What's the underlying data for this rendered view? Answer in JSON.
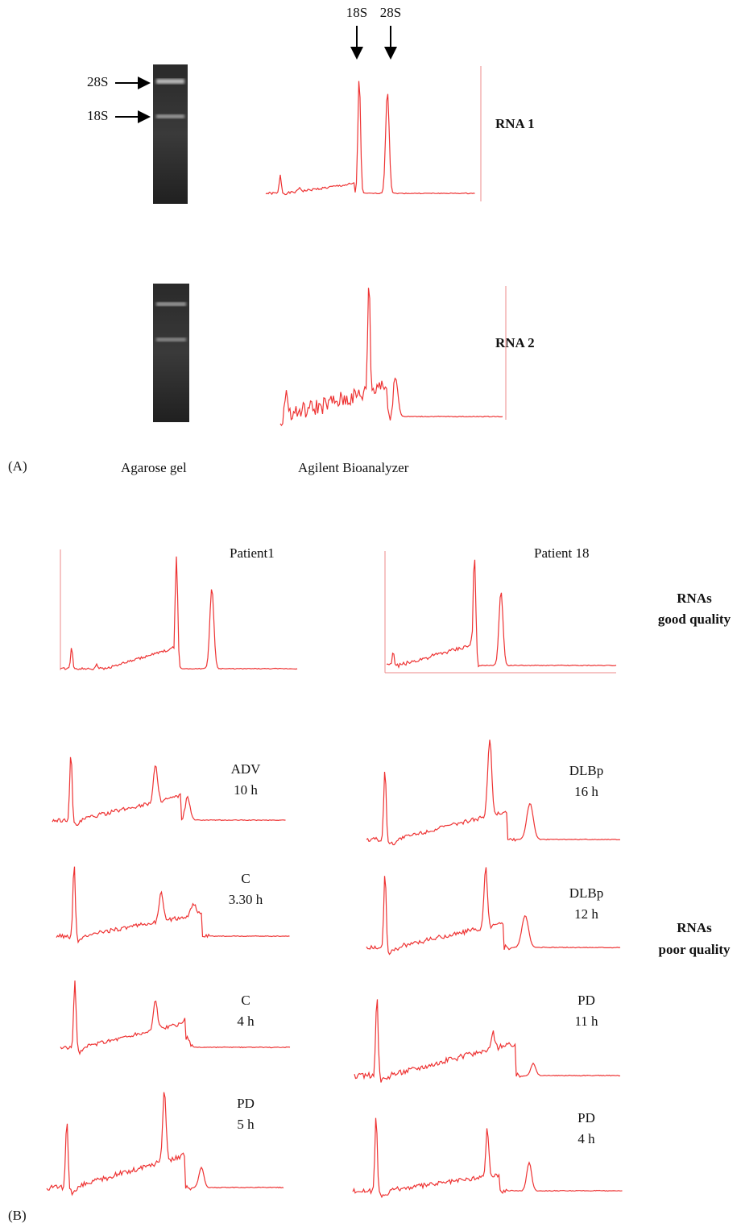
{
  "panel_a": {
    "label": "(A)",
    "gel_caption": "Agarose gel",
    "trace_caption": "Agilent Bioanalyzer",
    "gel_markers": [
      "28S",
      "18S"
    ],
    "peak_markers": [
      "18S",
      "28S"
    ],
    "samples": [
      "RNA 1",
      "RNA 2"
    ]
  },
  "panel_b": {
    "label": "(B)",
    "good": {
      "title": [
        "RNAs",
        "good quality"
      ],
      "patients": [
        "Patient1",
        "Patient 18"
      ]
    },
    "poor": {
      "title": [
        "RNAs",
        "poor quality"
      ],
      "samples": [
        {
          "name": "ADV",
          "time": "10 h"
        },
        {
          "name": "DLBp",
          "time": "16 h"
        },
        {
          "name": "C",
          "time": "3.30 h"
        },
        {
          "name": "DLBp",
          "time": "12 h"
        },
        {
          "name": "C",
          "time": "4 h"
        },
        {
          "name": "PD",
          "time": "11 h"
        },
        {
          "name": "PD",
          "time": "5 h"
        },
        {
          "name": "PD",
          "time": "4 h"
        }
      ]
    }
  }
}
